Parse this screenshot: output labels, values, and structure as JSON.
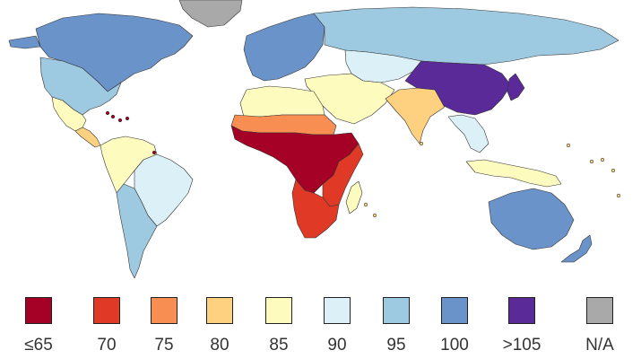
{
  "legend": {
    "items": [
      {
        "label": "≤65",
        "color": "#a50026"
      },
      {
        "label": "70",
        "color": "#e03a26"
      },
      {
        "label": "75",
        "color": "#f98e52"
      },
      {
        "label": "80",
        "color": "#fdd17f"
      },
      {
        "label": "85",
        "color": "#fefbbf"
      },
      {
        "label": "90",
        "color": "#dcf1f7"
      },
      {
        "label": "95",
        "color": "#9ecae1"
      },
      {
        "label": "100",
        "color": "#6a93c9"
      },
      {
        "label": ">105",
        "color": "#5b2a99"
      },
      {
        "label": "N/A",
        "color": "#a9a9a9"
      }
    ]
  },
  "regions": [
    {
      "id": "greenland",
      "value": "N/A"
    },
    {
      "id": "canada",
      "value": "100"
    },
    {
      "id": "usa",
      "value": "95"
    },
    {
      "id": "mexico",
      "value": "85"
    },
    {
      "id": "central-america",
      "value": "80"
    },
    {
      "id": "northern-south-america",
      "value": "85"
    },
    {
      "id": "brazil",
      "value": "90"
    },
    {
      "id": "southern-cone",
      "value": "95"
    },
    {
      "id": "europe",
      "value": "100"
    },
    {
      "id": "russia",
      "value": "95"
    },
    {
      "id": "central-asia",
      "value": "90"
    },
    {
      "id": "middle-east",
      "value": "85"
    },
    {
      "id": "north-africa",
      "value": "85"
    },
    {
      "id": "sahel",
      "value": "75"
    },
    {
      "id": "west-central-africa",
      "value": "≤65"
    },
    {
      "id": "east-africa",
      "value": "70"
    },
    {
      "id": "southern-africa",
      "value": "70"
    },
    {
      "id": "india",
      "value": "80"
    },
    {
      "id": "china",
      "value": ">105"
    },
    {
      "id": "japan",
      "value": ">105"
    },
    {
      "id": "southeast-asia",
      "value": "90"
    },
    {
      "id": "indonesia",
      "value": "85"
    },
    {
      "id": "australia",
      "value": "100"
    },
    {
      "id": "new-zealand",
      "value": "100"
    },
    {
      "id": "madagascar",
      "value": "85"
    }
  ]
}
